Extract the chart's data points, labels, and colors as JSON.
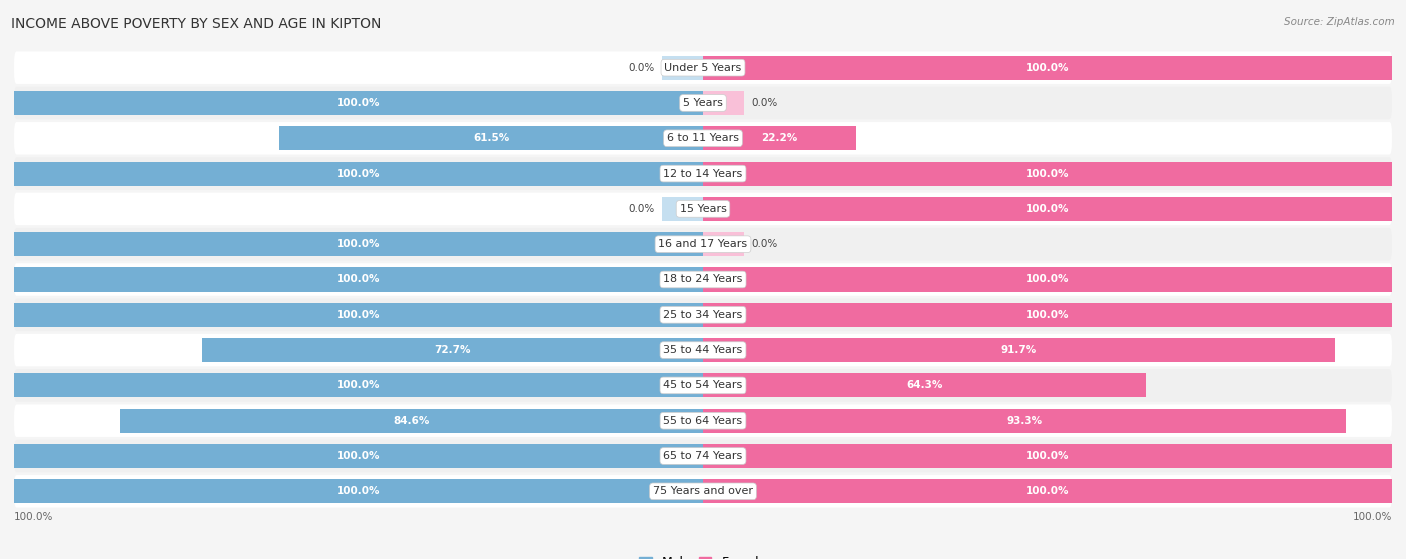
{
  "title": "INCOME ABOVE POVERTY BY SEX AND AGE IN KIPTON",
  "source": "Source: ZipAtlas.com",
  "categories": [
    "Under 5 Years",
    "5 Years",
    "6 to 11 Years",
    "12 to 14 Years",
    "15 Years",
    "16 and 17 Years",
    "18 to 24 Years",
    "25 to 34 Years",
    "35 to 44 Years",
    "45 to 54 Years",
    "55 to 64 Years",
    "65 to 74 Years",
    "75 Years and over"
  ],
  "male": [
    0.0,
    100.0,
    61.5,
    100.0,
    0.0,
    100.0,
    100.0,
    100.0,
    72.7,
    100.0,
    84.6,
    100.0,
    100.0
  ],
  "female": [
    100.0,
    0.0,
    22.2,
    100.0,
    100.0,
    0.0,
    100.0,
    100.0,
    91.7,
    64.3,
    93.3,
    100.0,
    100.0
  ],
  "male_color": "#74afd4",
  "female_color": "#f06ba0",
  "male_color_light": "#c5dff0",
  "female_color_light": "#f9c0d8",
  "row_bg_dark": "#e8e8e8",
  "row_bg_light": "#f0f0f0",
  "bg_color": "#f5f5f5",
  "title_fontsize": 10,
  "label_fontsize": 8,
  "value_fontsize": 7.5,
  "axis_label_fontsize": 7.5
}
